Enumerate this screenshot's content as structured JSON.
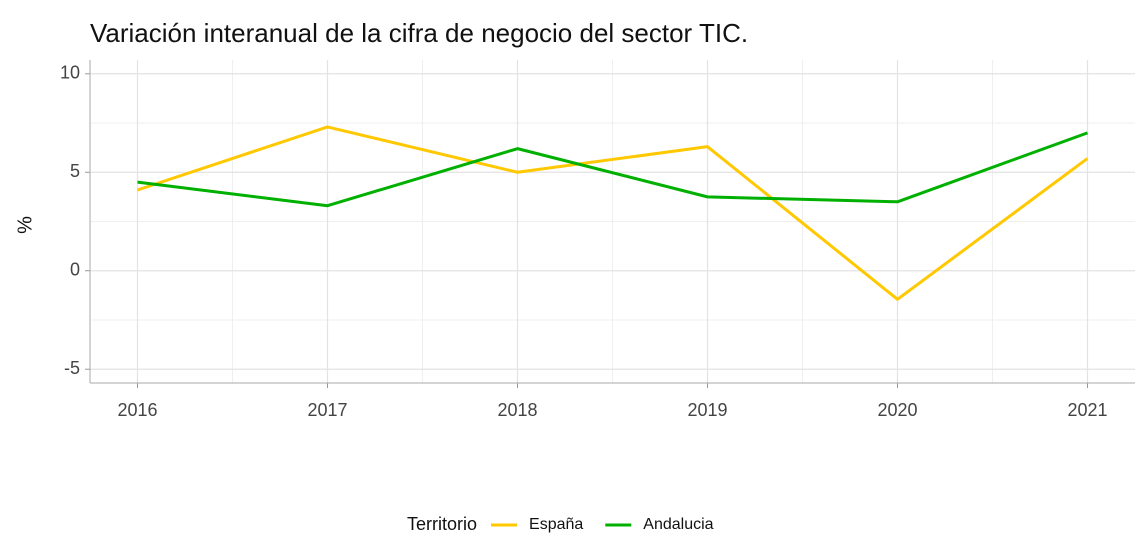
{
  "chart_data": {
    "type": "line",
    "title": "Variación interanual de la cifra de negocio del sector TIC.",
    "y_label": "%",
    "legend_title": "Territorio",
    "legend_position": "bottom",
    "x": [
      2016,
      2017,
      2018,
      2019,
      2020,
      2021
    ],
    "xlim": [
      2015.75,
      2021.25
    ],
    "xticks": [
      2016,
      2017,
      2018,
      2019,
      2020,
      2021
    ],
    "ylim": [
      -5.7,
      10.7
    ],
    "yticks": [
      -5,
      0,
      5,
      10
    ],
    "grid": true,
    "minor_grid": true,
    "series": [
      {
        "name": "España",
        "color": "#ffc800",
        "values": [
          4.1,
          7.3,
          5.0,
          6.3,
          -1.45,
          5.7
        ]
      },
      {
        "name": "Andalucia",
        "color": "#00b000",
        "values": [
          4.5,
          3.3,
          6.2,
          3.75,
          3.5,
          7.0
        ]
      }
    ]
  }
}
